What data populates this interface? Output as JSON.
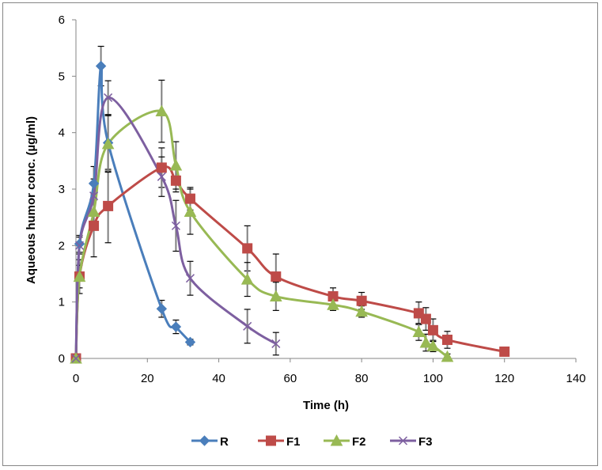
{
  "chart_data": {
    "type": "scatter",
    "title": "",
    "xlabel": "Time (h)",
    "ylabel": "Aqueous humor conc.  (µg/ml)",
    "xlim": [
      0,
      140
    ],
    "ylim": [
      0,
      6
    ],
    "xticks": [
      0,
      20,
      40,
      60,
      80,
      100,
      120,
      140
    ],
    "yticks": [
      0,
      1,
      2,
      3,
      4,
      5,
      6
    ],
    "grid": false,
    "legend_position": "bottom",
    "smooth_lines": true,
    "error_bars": true,
    "series": [
      {
        "name": "R",
        "color": "#4a7ebb",
        "marker": "diamond",
        "x": [
          0,
          1,
          5,
          7,
          9,
          24,
          28,
          32
        ],
        "y": [
          0,
          2.03,
          3.1,
          5.18,
          3.82,
          0.88,
          0.56,
          0.29
        ],
        "err": [
          0,
          0.15,
          0.3,
          0.35,
          0.5,
          0.15,
          0.12,
          0.05
        ]
      },
      {
        "name": "F1",
        "color": "#be4b48",
        "marker": "square",
        "x": [
          0,
          1,
          5,
          9,
          24,
          28,
          32,
          48,
          56,
          72,
          80,
          96,
          98,
          100,
          104,
          120
        ],
        "y": [
          0,
          1.45,
          2.35,
          2.7,
          3.38,
          3.15,
          2.83,
          1.95,
          1.45,
          1.1,
          1.02,
          0.8,
          0.7,
          0.5,
          0.33,
          0.12
        ],
        "err": [
          0,
          0.3,
          0.55,
          0.65,
          0.35,
          0.2,
          0.2,
          0.4,
          0.4,
          0.15,
          0.15,
          0.2,
          0.2,
          0.2,
          0.15,
          0
        ]
      },
      {
        "name": "F2",
        "color": "#98b954",
        "marker": "triangle",
        "x": [
          0,
          1,
          5,
          9,
          24,
          28,
          32,
          48,
          56,
          72,
          80,
          96,
          98,
          100,
          104
        ],
        "y": [
          0,
          1.45,
          2.6,
          3.8,
          4.38,
          3.42,
          2.6,
          1.4,
          1.1,
          0.95,
          0.83,
          0.47,
          0.28,
          0.22,
          0.03
        ],
        "err": [
          0,
          0.2,
          0.3,
          0.5,
          0.55,
          0.42,
          0.4,
          0.3,
          0.25,
          0.1,
          0.1,
          0.15,
          0.15,
          0.1,
          0.05
        ]
      },
      {
        "name": "F3",
        "color": "#7d5fa0",
        "marker": "x",
        "x": [
          0,
          1,
          5,
          9,
          24,
          28,
          32,
          48,
          56
        ],
        "y": [
          0,
          2.0,
          2.88,
          4.62,
          3.22,
          2.35,
          1.42,
          0.57,
          0.26
        ],
        "err": [
          0,
          0.15,
          0.3,
          0.3,
          0.35,
          0.45,
          0.3,
          0.3,
          0.2
        ]
      }
    ]
  }
}
